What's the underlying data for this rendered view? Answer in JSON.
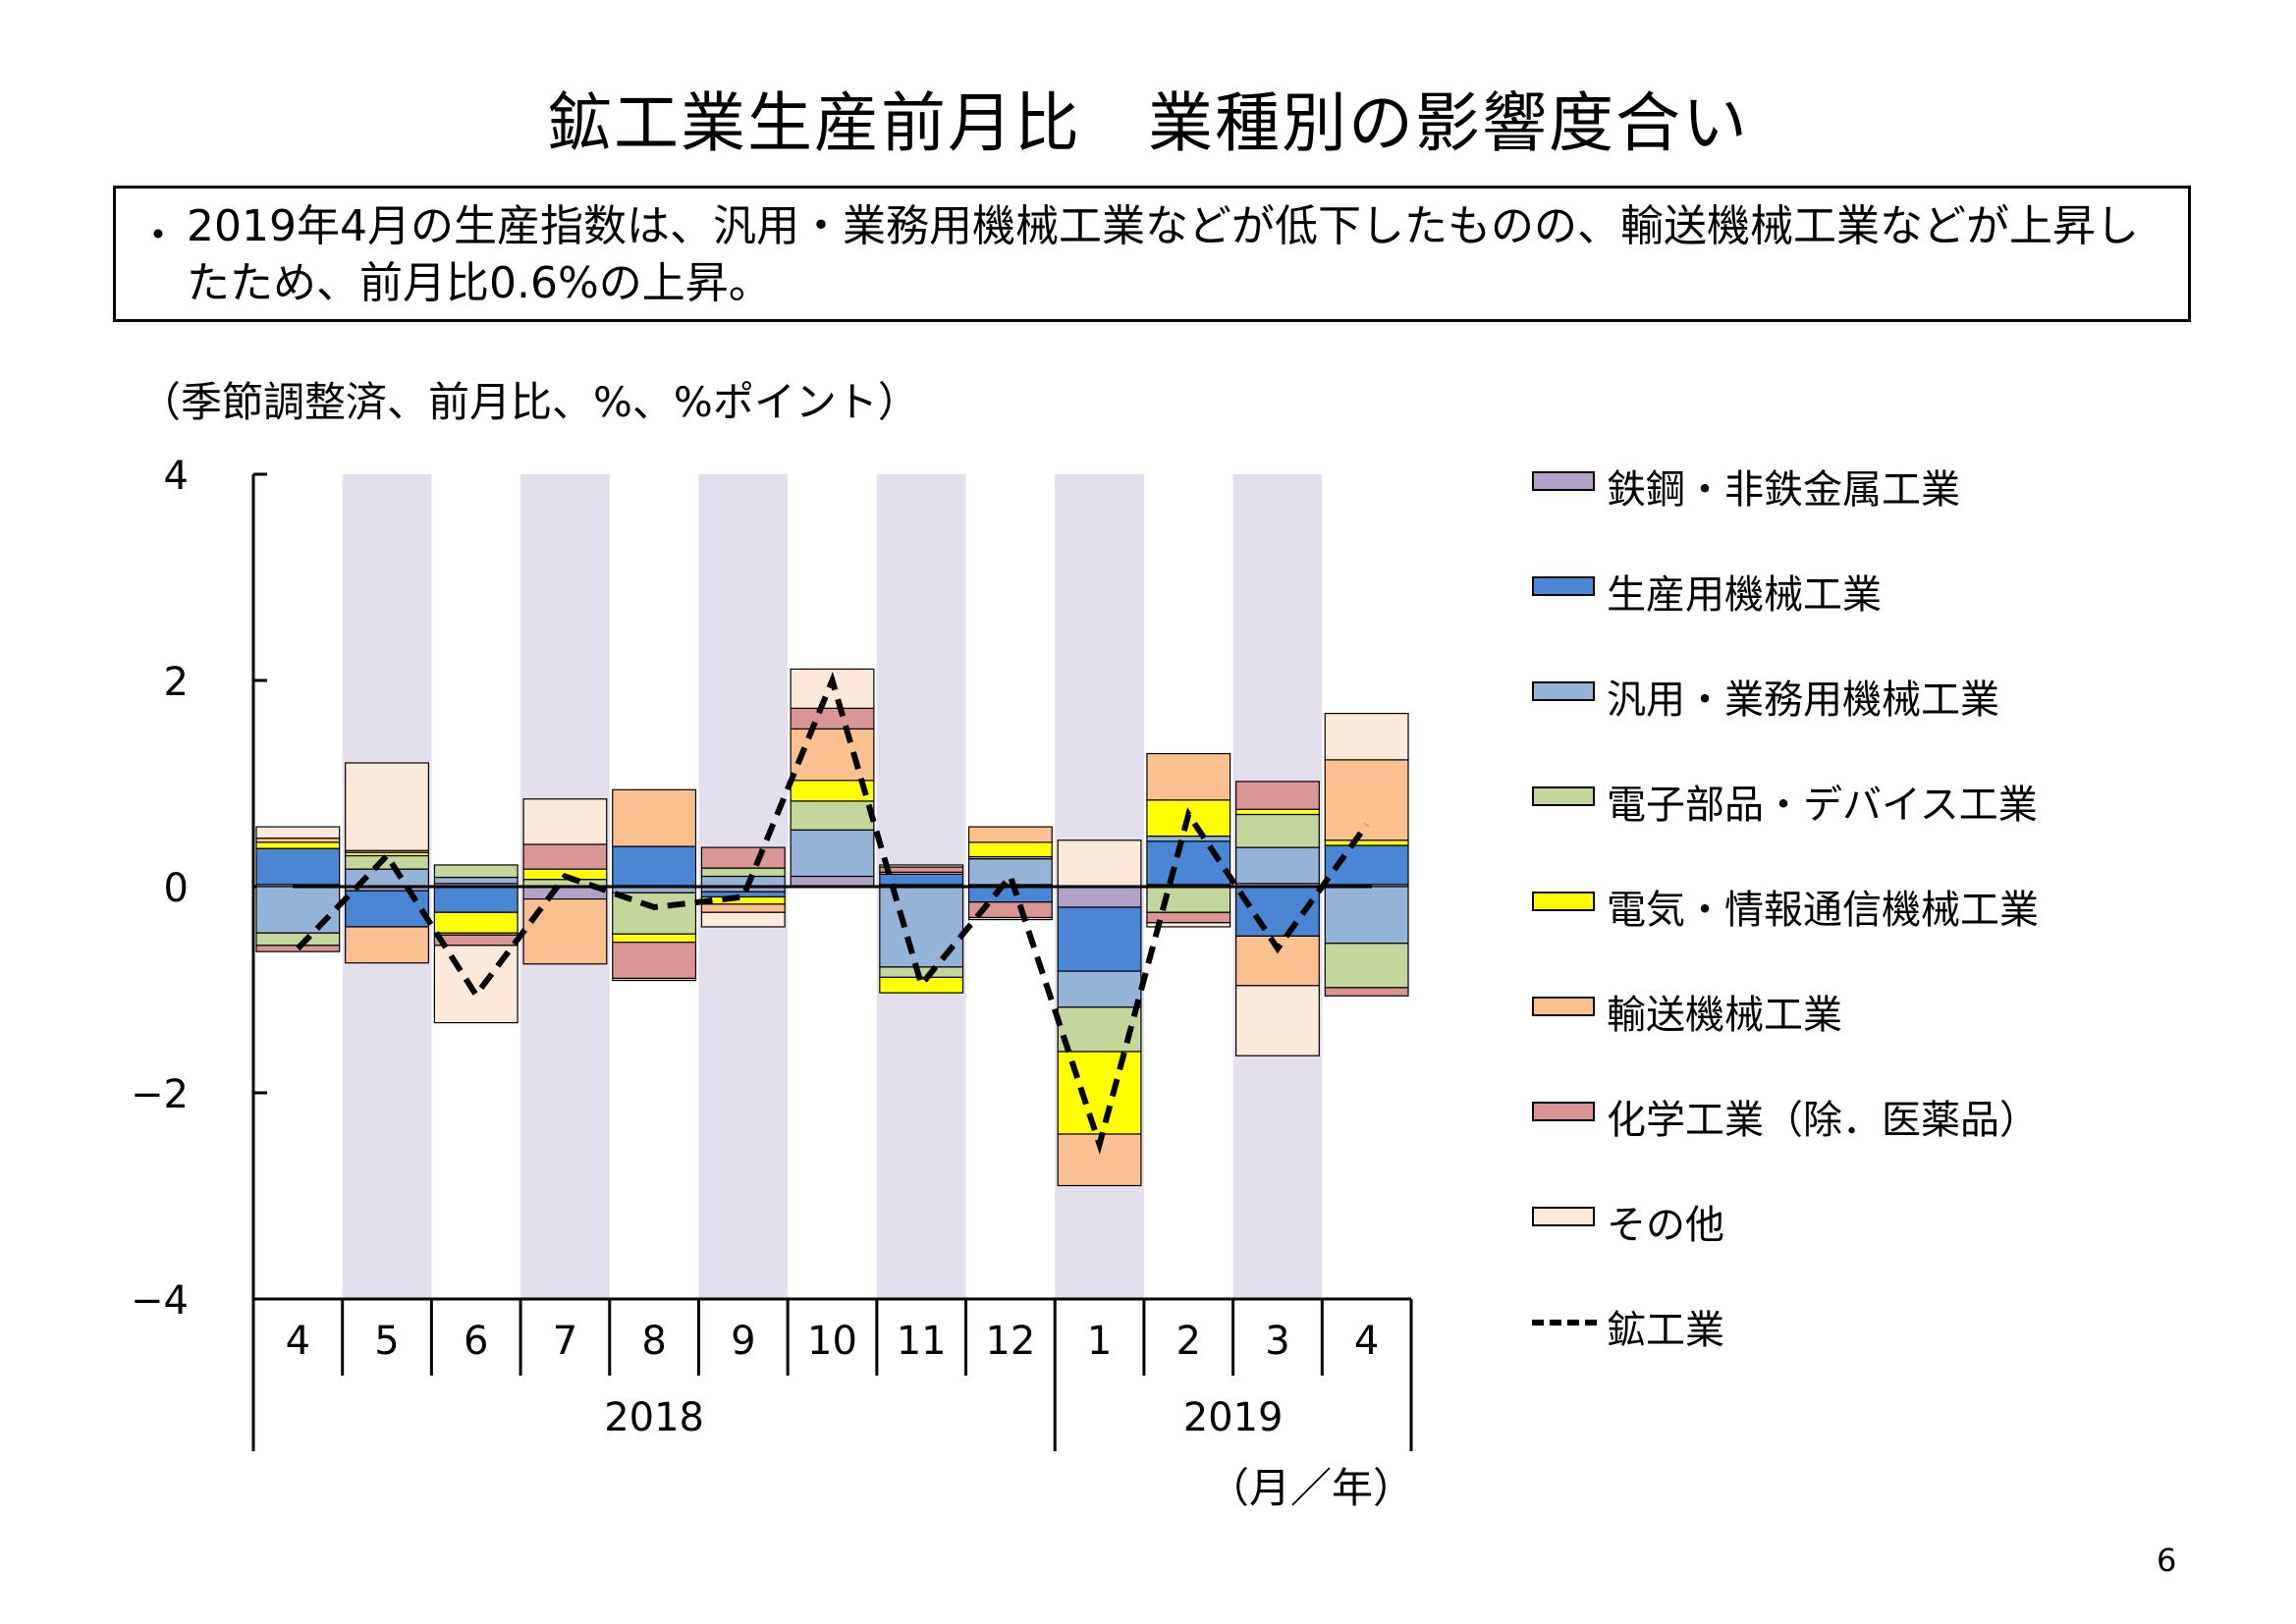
{
  "page": {
    "title": "鉱工業生産前月比　業種別の影響度合い",
    "summary_bullet": "・",
    "summary": "2019年4月の生産指数は、汎用・業務用機械工業などが低下したものの、輸送機械工業などが上昇したため、前月比0.6%の上昇。",
    "unit_note": "（季節調整済、前月比、%、%ポイント）",
    "month_year_note": "（月／年）",
    "page_number": "6"
  },
  "chart_data": {
    "type": "bar",
    "stacked": true,
    "categories": [
      "4",
      "5",
      "6",
      "7",
      "8",
      "9",
      "10",
      "11",
      "12",
      "1",
      "2",
      "3",
      "4"
    ],
    "year_labels": [
      {
        "label": "2018",
        "from": 0,
        "to": 8
      },
      {
        "label": "2019",
        "from": 9,
        "to": 12
      }
    ],
    "ylim": [
      -4,
      4
    ],
    "yticks": [
      4,
      2,
      0,
      -2,
      -4
    ],
    "ytick_labels": [
      "4",
      "2",
      "0",
      "−2",
      "−4"
    ],
    "shaded_columns": [
      1,
      3,
      5,
      7,
      9,
      11
    ],
    "shade_color": "#e4dfec",
    "series": [
      {
        "name": "鉄鋼・非鉄金属工業",
        "color": "#b3a2c7",
        "values": [
          0.02,
          -0.04,
          0.03,
          -0.12,
          0.01,
          -0.05,
          0.1,
          0.02,
          0.02,
          -0.2,
          0.02,
          0.03,
          0.02
        ]
      },
      {
        "name": "生産用機械工業",
        "color": "#4a86d4",
        "values": [
          0.35,
          -0.35,
          -0.25,
          0.0,
          0.38,
          -0.05,
          0.0,
          0.1,
          -0.15,
          -0.62,
          0.42,
          -0.48,
          0.38
        ]
      },
      {
        "name": "汎用・業務用機械工業",
        "color": "#95b3d7",
        "values": [
          -0.45,
          0.17,
          0.06,
          0.0,
          -0.06,
          0.1,
          0.45,
          -0.78,
          0.25,
          -0.35,
          0.05,
          0.35,
          -0.55
        ]
      },
      {
        "name": "電子部品・デバイス工業",
        "color": "#c3d69b",
        "values": [
          -0.12,
          0.13,
          0.12,
          0.07,
          -0.4,
          0.08,
          0.28,
          -0.1,
          0.02,
          -0.43,
          -0.25,
          0.32,
          -0.43
        ]
      },
      {
        "name": "電気・情報通信機械工業",
        "color": "#ffff00",
        "values": [
          0.06,
          0.03,
          -0.2,
          0.1,
          -0.08,
          -0.07,
          0.2,
          -0.15,
          0.14,
          -0.8,
          0.35,
          0.05,
          0.05
        ]
      },
      {
        "name": "輸送機械工業",
        "color": "#fac090",
        "values": [
          0.04,
          -0.35,
          -0.02,
          -0.63,
          0.55,
          -0.08,
          0.5,
          0.02,
          0.15,
          -0.5,
          0.45,
          -0.48,
          0.78
        ]
      },
      {
        "name": "化学工業（除．医薬品）",
        "color": "#d99694",
        "values": [
          -0.06,
          0.02,
          -0.1,
          0.24,
          -0.35,
          0.2,
          0.2,
          0.05,
          -0.15,
          0.0,
          -0.1,
          0.27,
          -0.08
        ]
      },
      {
        "name": "その他",
        "color": "#fde9d9",
        "values": [
          0.11,
          0.85,
          -0.75,
          0.44,
          -0.02,
          -0.14,
          0.38,
          0.02,
          -0.02,
          0.45,
          -0.04,
          -0.68,
          0.45
        ]
      }
    ],
    "line": {
      "name": "鉱工業",
      "style": "dashed",
      "values": [
        -0.6,
        0.3,
        -1.05,
        0.1,
        -0.2,
        -0.1,
        2.0,
        -0.95,
        0.1,
        -2.5,
        0.7,
        -0.6,
        0.6
      ]
    }
  }
}
